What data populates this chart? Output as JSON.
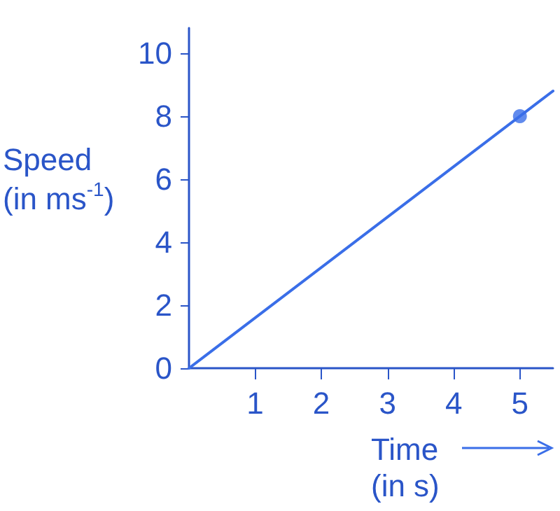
{
  "chart_data": {
    "type": "line",
    "xlabel": "Time\n(in s)",
    "ylabel": "Speed\n(in ms$^{-1}$)",
    "xlim": [
      0,
      5.5
    ],
    "ylim": [
      0,
      10.8
    ],
    "xticks": [
      1,
      2,
      3,
      4,
      5
    ],
    "yticks": [
      0,
      2,
      4,
      6,
      8,
      10
    ],
    "line_style": "solid",
    "series": [
      {
        "color": "#3a6ee8",
        "x": [
          0,
          5.5
        ],
        "values": [
          0,
          8.8
        ],
        "marker": "none"
      },
      {
        "type": "scatter",
        "color": "#3a6ee8",
        "x": [
          5
        ],
        "values": [
          8
        ],
        "marker": "circle"
      }
    ]
  }
}
